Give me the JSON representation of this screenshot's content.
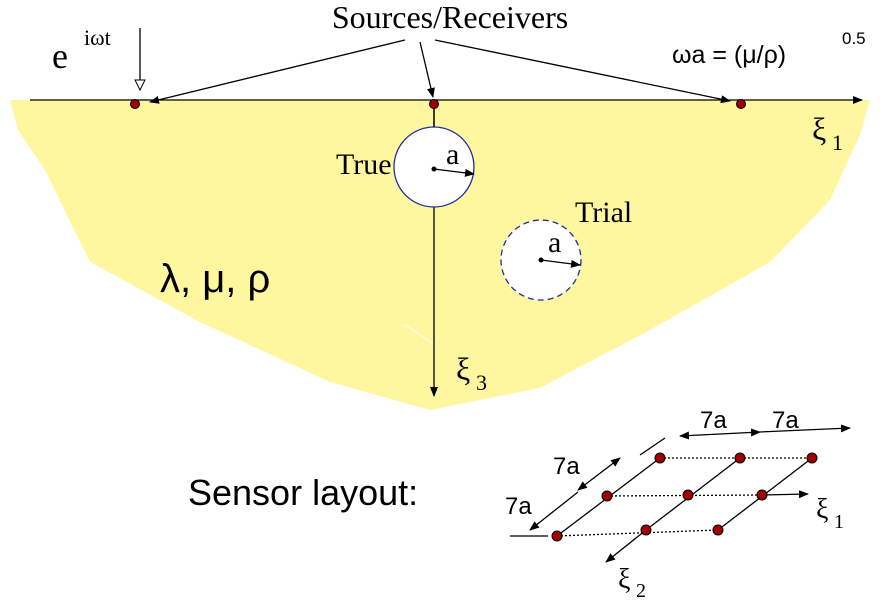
{
  "sources_label": "Sources/Receivers",
  "excitation": {
    "base": "e",
    "sup": "iωt"
  },
  "frequency": {
    "base": "ωa = (μ/ρ)",
    "sup": "0.5"
  },
  "axis_x": {
    "base": "ξ",
    "sub": "1"
  },
  "axis_z": {
    "base": "ξ",
    "sub": "3"
  },
  "true_label": "True",
  "true_radius": "a",
  "trial_label": "Trial",
  "trial_radius": "a",
  "material": "λ, μ, ρ",
  "sensor": {
    "title": "Sensor layout:",
    "spacing": [
      "7a",
      "7a",
      "7a",
      "7a"
    ],
    "axis_1": {
      "base": "ξ",
      "sub": "1"
    },
    "axis_2": {
      "base": "ξ",
      "sub": "2"
    }
  }
}
